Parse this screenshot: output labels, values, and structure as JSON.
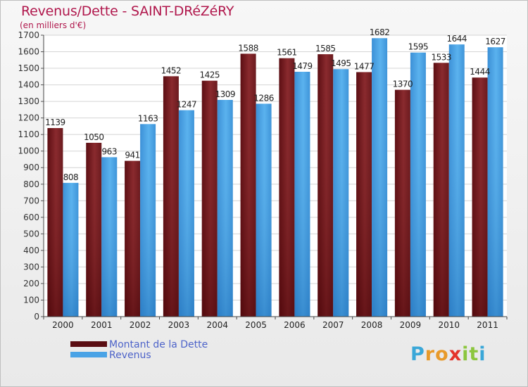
{
  "title": "Revenus/Dette - SAINT-DRéZéRY",
  "subtitle": "(en milliers d'€)",
  "logo": {
    "text": "Proxiti",
    "letters": [
      {
        "ch": "P",
        "color": "#3aa7d8"
      },
      {
        "ch": "r",
        "color": "#e89a2a"
      },
      {
        "ch": "o",
        "color": "#e89a2a"
      },
      {
        "ch": "x",
        "color": "#e4322b"
      },
      {
        "ch": "i",
        "color": "#8cc63e"
      },
      {
        "ch": "t",
        "color": "#8cc63e"
      },
      {
        "ch": "i",
        "color": "#3aa7d8"
      }
    ]
  },
  "chart_data": {
    "type": "bar",
    "categories": [
      "2000",
      "2001",
      "2002",
      "2003",
      "2004",
      "2005",
      "2006",
      "2007",
      "2008",
      "2009",
      "2010",
      "2011"
    ],
    "series": [
      {
        "name": "Montant de la Dette",
        "color": "#7a1f23",
        "values": [
          1139,
          1050,
          941,
          1452,
          1425,
          1588,
          1561,
          1585,
          1477,
          1370,
          1533,
          1444
        ],
        "labels": [
          "1139",
          "1050",
          "941",
          "1452",
          "1425",
          "1588",
          "1561",
          "1585",
          "1477",
          "1370",
          "1533",
          "1444"
        ]
      },
      {
        "name": "Revenus",
        "color": "#4aa3e6",
        "values": [
          808,
          963,
          1163,
          1247,
          1309,
          1286,
          1479,
          1495,
          1682,
          1595,
          1644,
          1627
        ],
        "labels": [
          "808",
          "963",
          "1163",
          "1247",
          "1309",
          "1286",
          "1479",
          "1495",
          "1682",
          "1595",
          "1644",
          "1627"
        ]
      }
    ],
    "title": "Revenus/Dette - SAINT-DRéZéRY",
    "subtitle": "(en milliers d'€)",
    "xlabel": "",
    "ylabel": "",
    "ylim": [
      0,
      1700
    ],
    "ytick_step": 100,
    "grid": true,
    "legend_position": "bottom-left"
  }
}
